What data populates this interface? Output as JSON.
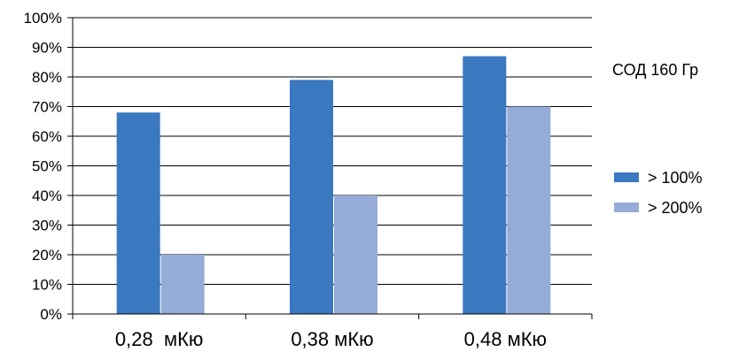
{
  "chart_data": {
    "type": "bar",
    "title": "",
    "xlabel": "",
    "ylabel": "",
    "annotation": "СОД 160 Гр",
    "categories": [
      "0,28  мКю",
      "0,38 мКю",
      "0,48 мКю"
    ],
    "series": [
      {
        "name": "> 100%",
        "values": [
          68,
          79,
          87
        ],
        "color": "#3A78C0"
      },
      {
        "name": "> 200%",
        "values": [
          20,
          40,
          70
        ],
        "color": "#95ACD8"
      }
    ],
    "ylim": [
      0,
      100
    ],
    "yticks": [
      "0%",
      "10%",
      "20%",
      "30%",
      "40%",
      "50%",
      "60%",
      "70%",
      "80%",
      "90%",
      "100%"
    ],
    "grid": true,
    "legend_position": "right"
  }
}
